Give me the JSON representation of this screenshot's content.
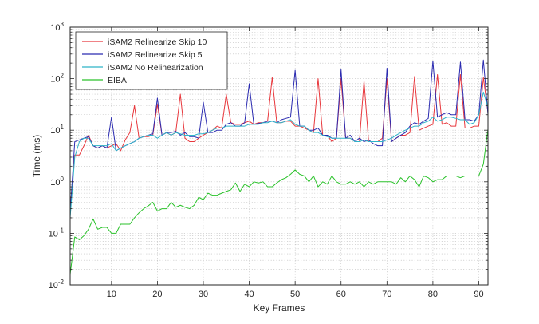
{
  "chart_data": {
    "type": "line",
    "xlabel": "Key Frames",
    "ylabel": "Time (ms)",
    "xlim": [
      1,
      92
    ],
    "ylim": [
      0.01,
      1000
    ],
    "yscale": "log",
    "grid": "major and minor, dotted",
    "legend_position": "top-left",
    "x_ticks": [
      10,
      20,
      30,
      40,
      50,
      60,
      70,
      80,
      90
    ],
    "x_tick_labels": [
      "10",
      "20",
      "30",
      "40",
      "50",
      "60",
      "70",
      "80",
      "90"
    ],
    "y_ticks": [
      0.01,
      0.1,
      1,
      10,
      100,
      1000
    ],
    "y_tick_labels": [
      {
        "base": "10",
        "exp": "-2"
      },
      {
        "base": "10",
        "exp": "-1"
      },
      {
        "base": "10",
        "exp": "0"
      },
      {
        "base": "10",
        "exp": "1"
      },
      {
        "base": "10",
        "exp": "2"
      },
      {
        "base": "10",
        "exp": "3"
      }
    ],
    "series": [
      {
        "name": "iSAM2 Relinearize Skip 10",
        "color": "#e8383d",
        "x": [
          1,
          2,
          3,
          4,
          5,
          6,
          7,
          8,
          9,
          10,
          11,
          12,
          13,
          14,
          15,
          16,
          17,
          18,
          19,
          20,
          21,
          22,
          23,
          24,
          25,
          26,
          27,
          28,
          29,
          30,
          31,
          32,
          33,
          34,
          35,
          36,
          37,
          38,
          39,
          40,
          41,
          42,
          43,
          44,
          45,
          46,
          47,
          48,
          49,
          50,
          51,
          52,
          53,
          54,
          55,
          56,
          57,
          58,
          59,
          60,
          61,
          62,
          63,
          64,
          65,
          66,
          67,
          68,
          69,
          70,
          71,
          72,
          73,
          74,
          75,
          76,
          77,
          78,
          79,
          80,
          81,
          82,
          83,
          84,
          85,
          86,
          87,
          88,
          89,
          90,
          91,
          92
        ],
        "y": [
          0.3,
          3.3,
          3.3,
          5,
          8,
          5,
          4.5,
          5,
          4.5,
          5,
          5.5,
          4,
          6.5,
          9,
          30,
          7,
          7.5,
          7.5,
          8,
          32,
          8,
          9,
          8,
          9,
          50,
          7,
          6,
          6,
          7,
          8,
          9,
          10,
          12,
          11,
          50,
          14,
          13,
          13,
          14,
          15,
          13,
          14,
          14,
          15,
          105,
          14,
          14,
          15,
          15,
          12,
          12,
          11,
          10,
          9,
          100,
          8,
          8,
          6,
          7,
          100,
          7,
          7,
          6,
          6,
          90,
          6,
          6,
          6,
          7,
          100,
          6,
          7,
          8,
          8,
          9,
          110,
          10,
          11,
          12,
          13,
          120,
          13,
          14,
          12,
          12,
          120,
          11,
          11,
          12,
          12,
          105,
          22
        ]
      },
      {
        "name": "iSAM2 Relinearize Skip 5",
        "color": "#2b2bb0",
        "x": [
          1,
          2,
          3,
          4,
          5,
          6,
          7,
          8,
          9,
          10,
          11,
          12,
          13,
          14,
          15,
          16,
          17,
          18,
          19,
          20,
          21,
          22,
          23,
          24,
          25,
          26,
          27,
          28,
          29,
          30,
          31,
          32,
          33,
          34,
          35,
          36,
          37,
          38,
          39,
          40,
          41,
          42,
          43,
          44,
          45,
          46,
          47,
          48,
          49,
          50,
          51,
          52,
          53,
          54,
          55,
          56,
          57,
          58,
          59,
          60,
          61,
          62,
          63,
          64,
          65,
          66,
          67,
          68,
          69,
          70,
          71,
          72,
          73,
          74,
          75,
          76,
          77,
          78,
          79,
          80,
          81,
          82,
          83,
          84,
          85,
          86,
          87,
          88,
          89,
          90,
          91,
          92
        ],
        "y": [
          0.25,
          6,
          6.5,
          7,
          7.5,
          5,
          4.5,
          5,
          4.5,
          18,
          4,
          4.5,
          5,
          5.5,
          6,
          7,
          7.5,
          8,
          8.5,
          42,
          8,
          9,
          9,
          9.5,
          8,
          9,
          7.5,
          7.5,
          7,
          35,
          9,
          9,
          10,
          10,
          13,
          14,
          12,
          12,
          14,
          80,
          13,
          13.5,
          14,
          15,
          15,
          14,
          16,
          17,
          18,
          145,
          12,
          12,
          10,
          10,
          11,
          8,
          8,
          7,
          7,
          150,
          7,
          8,
          6,
          7,
          6,
          6.5,
          5.5,
          5,
          5,
          160,
          6,
          7,
          8,
          9,
          12,
          14,
          13,
          15,
          17,
          220,
          18,
          20,
          22,
          20,
          20,
          210,
          16,
          16,
          15,
          20,
          230,
          20
        ]
      },
      {
        "name": "iSAM2 No Relinearization",
        "color": "#2fb3c8",
        "x": [
          1,
          2,
          3,
          4,
          5,
          6,
          7,
          8,
          9,
          10,
          11,
          12,
          13,
          14,
          15,
          16,
          17,
          18,
          19,
          20,
          21,
          22,
          23,
          24,
          25,
          26,
          27,
          28,
          29,
          30,
          31,
          32,
          33,
          34,
          35,
          36,
          37,
          38,
          39,
          40,
          41,
          42,
          43,
          44,
          45,
          46,
          47,
          48,
          49,
          50,
          51,
          52,
          53,
          54,
          55,
          56,
          57,
          58,
          59,
          60,
          61,
          62,
          63,
          64,
          65,
          66,
          67,
          68,
          69,
          70,
          71,
          72,
          73,
          74,
          75,
          76,
          77,
          78,
          79,
          80,
          81,
          82,
          83,
          84,
          85,
          86,
          87,
          88,
          89,
          90,
          91,
          92
        ],
        "y": [
          0.2,
          3,
          6,
          7,
          7,
          5,
          5,
          5,
          5,
          5.5,
          4,
          4.5,
          5,
          5.5,
          6,
          7,
          7.5,
          8,
          8,
          7,
          8,
          9,
          8,
          9,
          8.5,
          8,
          8,
          8,
          8.5,
          8.5,
          9,
          10,
          11,
          11,
          12,
          12,
          12,
          12,
          12,
          13,
          13,
          13,
          14,
          14,
          15,
          14,
          14,
          15,
          16,
          13,
          12,
          12,
          10,
          9,
          9,
          8,
          7.5,
          7,
          7,
          7,
          7,
          7,
          6,
          6,
          6.5,
          6,
          6,
          6,
          6,
          6.5,
          7,
          8,
          9,
          10,
          11,
          12,
          12,
          14,
          15,
          18,
          15,
          16,
          18,
          18,
          17,
          16,
          16,
          13,
          14,
          20,
          55,
          28
        ]
      },
      {
        "name": "EIBA",
        "color": "#2bc22b",
        "x": [
          1,
          2,
          3,
          4,
          5,
          6,
          7,
          8,
          9,
          10,
          11,
          12,
          13,
          14,
          15,
          16,
          17,
          18,
          19,
          20,
          21,
          22,
          23,
          24,
          25,
          26,
          27,
          28,
          29,
          30,
          31,
          32,
          33,
          34,
          35,
          36,
          37,
          38,
          39,
          40,
          41,
          42,
          43,
          44,
          45,
          46,
          47,
          48,
          49,
          50,
          51,
          52,
          53,
          54,
          55,
          56,
          57,
          58,
          59,
          60,
          61,
          62,
          63,
          64,
          65,
          66,
          67,
          68,
          69,
          70,
          71,
          72,
          73,
          74,
          75,
          76,
          77,
          78,
          79,
          80,
          81,
          82,
          83,
          84,
          85,
          86,
          87,
          88,
          89,
          90,
          91,
          92
        ],
        "y": [
          0.016,
          0.085,
          0.075,
          0.09,
          0.12,
          0.19,
          0.12,
          0.13,
          0.13,
          0.1,
          0.1,
          0.15,
          0.15,
          0.15,
          0.2,
          0.25,
          0.3,
          0.34,
          0.4,
          0.27,
          0.3,
          0.3,
          0.4,
          0.32,
          0.35,
          0.32,
          0.3,
          0.35,
          0.5,
          0.45,
          0.6,
          0.55,
          0.55,
          0.6,
          0.65,
          0.7,
          0.95,
          0.65,
          0.9,
          0.8,
          1,
          0.95,
          1,
          0.8,
          0.8,
          0.95,
          1.1,
          1.2,
          1.4,
          1.7,
          1.4,
          1.3,
          1.0,
          1.3,
          0.8,
          1.0,
          0.9,
          1.3,
          1.0,
          0.9,
          0.9,
          1.0,
          0.9,
          1.0,
          0.8,
          1.0,
          0.9,
          1.0,
          1.0,
          1.0,
          1.0,
          0.9,
          1.2,
          1.0,
          1.3,
          1.1,
          0.8,
          1.3,
          1.2,
          1.0,
          1.1,
          1.1,
          1.3,
          1.3,
          1.3,
          1.2,
          1.3,
          1.3,
          1.3,
          1.3,
          2.2,
          10.5
        ]
      }
    ]
  }
}
